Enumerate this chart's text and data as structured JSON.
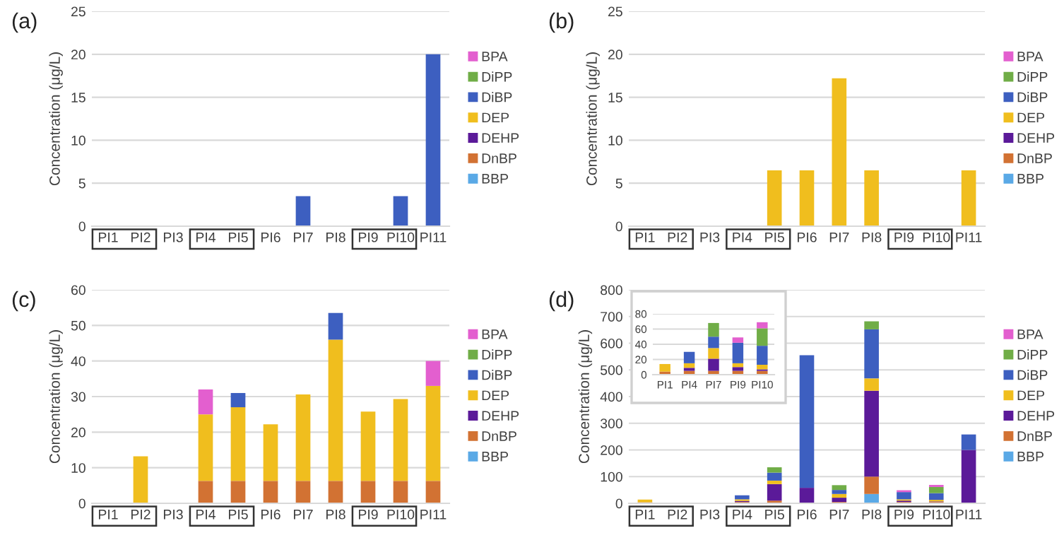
{
  "chart_data": [
    {
      "type": "bar",
      "title": "(a)",
      "ylabel": "Concentration (μg/L)",
      "stacked": true,
      "categories": [
        "PI1",
        "PI2",
        "PI3",
        "PI4",
        "PI5",
        "PI6",
        "PI7",
        "PI8",
        "PI9",
        "PI10",
        "PI11"
      ],
      "ylim": [
        0,
        25
      ],
      "yticks": [
        0,
        5,
        10,
        15,
        20,
        25
      ],
      "grid": "y",
      "legend": "right",
      "series": [
        {
          "name": "BBP",
          "color": "#5aa9e6",
          "values": [
            null,
            null,
            null,
            null,
            null,
            null,
            null,
            null,
            null,
            null,
            null
          ]
        },
        {
          "name": "DnBP",
          "color": "#d27233",
          "values": [
            null,
            null,
            null,
            null,
            null,
            null,
            null,
            null,
            null,
            null,
            null
          ]
        },
        {
          "name": "DEHP",
          "color": "#5b1a99",
          "values": [
            null,
            null,
            null,
            null,
            null,
            null,
            null,
            null,
            null,
            null,
            null
          ]
        },
        {
          "name": "DEP",
          "color": "#f0be1e",
          "values": [
            null,
            null,
            null,
            null,
            null,
            null,
            null,
            null,
            null,
            null,
            null
          ]
        },
        {
          "name": "DiBP",
          "color": "#3d5fc0",
          "values": [
            null,
            null,
            null,
            null,
            null,
            null,
            3.5,
            null,
            null,
            3.5,
            20
          ]
        },
        {
          "name": "DiPP",
          "color": "#70ad47",
          "values": [
            null,
            null,
            null,
            null,
            null,
            null,
            null,
            null,
            null,
            null,
            null
          ]
        },
        {
          "name": "BPA",
          "color": "#e35fcf",
          "values": [
            null,
            null,
            null,
            null,
            null,
            null,
            null,
            null,
            null,
            null,
            null
          ]
        }
      ]
    },
    {
      "type": "bar",
      "title": "(b)",
      "ylabel": "Concentration (μg/L)",
      "stacked": true,
      "categories": [
        "PI1",
        "PI2",
        "PI3",
        "PI4",
        "PI5",
        "PI6",
        "PI7",
        "PI8",
        "PI9",
        "PI10",
        "PI11"
      ],
      "ylim": [
        0,
        25
      ],
      "yticks": [
        0,
        5,
        10,
        15,
        20,
        25
      ],
      "grid": "y",
      "legend": "right",
      "series": [
        {
          "name": "BBP",
          "color": "#5aa9e6",
          "values": [
            null,
            null,
            null,
            null,
            null,
            null,
            null,
            null,
            null,
            null,
            null
          ]
        },
        {
          "name": "DnBP",
          "color": "#d27233",
          "values": [
            null,
            null,
            null,
            null,
            null,
            null,
            null,
            null,
            null,
            null,
            null
          ]
        },
        {
          "name": "DEHP",
          "color": "#5b1a99",
          "values": [
            null,
            null,
            null,
            null,
            null,
            null,
            null,
            null,
            null,
            null,
            null
          ]
        },
        {
          "name": "DEP",
          "color": "#f0be1e",
          "values": [
            null,
            null,
            null,
            null,
            6.5,
            6.5,
            17.2,
            6.5,
            null,
            null,
            6.5
          ]
        },
        {
          "name": "DiBP",
          "color": "#3d5fc0",
          "values": [
            null,
            null,
            null,
            null,
            null,
            null,
            null,
            null,
            null,
            null,
            null
          ]
        },
        {
          "name": "DiPP",
          "color": "#70ad47",
          "values": [
            null,
            null,
            null,
            null,
            null,
            null,
            null,
            null,
            null,
            null,
            null
          ]
        },
        {
          "name": "BPA",
          "color": "#e35fcf",
          "values": [
            null,
            null,
            null,
            null,
            null,
            null,
            null,
            null,
            null,
            null,
            null
          ]
        }
      ]
    },
    {
      "type": "bar",
      "title": "(c)",
      "ylabel": "Concentration (μg/L)",
      "stacked": true,
      "categories": [
        "PI1",
        "PI2",
        "PI3",
        "PI4",
        "PI5",
        "PI6",
        "PI7",
        "PI8",
        "PI9",
        "PI10",
        "PI11"
      ],
      "ylim": [
        0,
        60
      ],
      "yticks": [
        0,
        10,
        20,
        30,
        40,
        50,
        60
      ],
      "grid": "y",
      "legend": "right",
      "series": [
        {
          "name": "BBP",
          "color": "#5aa9e6",
          "values": [
            null,
            null,
            null,
            null,
            null,
            null,
            null,
            null,
            null,
            null,
            null
          ]
        },
        {
          "name": "DnBP",
          "color": "#d27233",
          "values": [
            null,
            null,
            null,
            6.3,
            6.3,
            6.3,
            6.3,
            6.3,
            6.3,
            6.3,
            6.3
          ]
        },
        {
          "name": "DEHP",
          "color": "#5b1a99",
          "values": [
            null,
            null,
            null,
            null,
            null,
            null,
            null,
            null,
            null,
            null,
            null
          ]
        },
        {
          "name": "DEP",
          "color": "#f0be1e",
          "values": [
            null,
            13.2,
            null,
            18.7,
            20.7,
            15.9,
            24.3,
            39.7,
            19.5,
            23,
            26.7
          ]
        },
        {
          "name": "DiBP",
          "color": "#3d5fc0",
          "values": [
            null,
            null,
            null,
            null,
            4,
            null,
            null,
            7.5,
            null,
            null,
            null
          ]
        },
        {
          "name": "DiPP",
          "color": "#70ad47",
          "values": [
            null,
            null,
            null,
            null,
            null,
            null,
            null,
            null,
            null,
            null,
            null
          ]
        },
        {
          "name": "BPA",
          "color": "#e35fcf",
          "values": [
            null,
            null,
            null,
            7,
            null,
            null,
            null,
            null,
            null,
            null,
            7
          ]
        }
      ]
    },
    {
      "type": "bar",
      "title": "(d)",
      "ylabel": "Concentration (μg/L)",
      "stacked": true,
      "categories": [
        "PI1",
        "PI2",
        "PI3",
        "PI4",
        "PI5",
        "PI6",
        "PI7",
        "PI8",
        "PI9",
        "PI10",
        "PI11"
      ],
      "ylim": [
        0,
        800
      ],
      "yticks": [
        0,
        100,
        200,
        300,
        400,
        500,
        600,
        700,
        800
      ],
      "grid": "y",
      "legend": "right",
      "series": [
        {
          "name": "BBP",
          "color": "#5aa9e6",
          "values": [
            null,
            null,
            null,
            null,
            null,
            null,
            null,
            35,
            null,
            null,
            null
          ]
        },
        {
          "name": "DnBP",
          "color": "#d27233",
          "values": [
            4,
            null,
            null,
            5,
            10,
            null,
            5,
            65,
            5,
            5,
            null
          ]
        },
        {
          "name": "DEHP",
          "color": "#5b1a99",
          "values": [
            null,
            null,
            null,
            4,
            62,
            58,
            16,
            322,
            5,
            2,
            200
          ]
        },
        {
          "name": "DEP",
          "color": "#f0be1e",
          "values": [
            10,
            null,
            null,
            6,
            13,
            null,
            14,
            46,
            5,
            6,
            null
          ]
        },
        {
          "name": "DiBP",
          "color": "#3d5fc0",
          "values": [
            null,
            null,
            null,
            15,
            30,
            497,
            15,
            184,
            27,
            25,
            58
          ]
        },
        {
          "name": "DiPP",
          "color": "#70ad47",
          "values": [
            null,
            null,
            null,
            null,
            20,
            null,
            18,
            30,
            null,
            23,
            null
          ]
        },
        {
          "name": "BPA",
          "color": "#e35fcf",
          "values": [
            null,
            null,
            null,
            null,
            null,
            null,
            null,
            null,
            7,
            8,
            null
          ]
        }
      ]
    },
    {
      "type": "bar",
      "stacked": true,
      "categories": [
        "PI1",
        "PI4",
        "PI7",
        "PI9",
        "PI10"
      ],
      "ylim": [
        0,
        80
      ],
      "yticks": [
        0,
        20,
        40,
        60,
        80
      ],
      "grid": "y",
      "series": [
        {
          "color": "#5aa9e6",
          "values": [
            null,
            null,
            null,
            null,
            null
          ]
        },
        {
          "color": "#d27233",
          "values": [
            4,
            5,
            5,
            5,
            5
          ]
        },
        {
          "color": "#5b1a99",
          "values": [
            null,
            4,
            16,
            5,
            2
          ]
        },
        {
          "color": "#f0be1e",
          "values": [
            10,
            6,
            14,
            5,
            6
          ]
        },
        {
          "color": "#3d5fc0",
          "values": [
            null,
            15,
            15,
            27,
            25
          ]
        },
        {
          "color": "#70ad47",
          "values": [
            null,
            null,
            18,
            null,
            23
          ]
        },
        {
          "color": "#e35fcf",
          "values": [
            null,
            null,
            null,
            7,
            8
          ]
        }
      ]
    }
  ]
}
